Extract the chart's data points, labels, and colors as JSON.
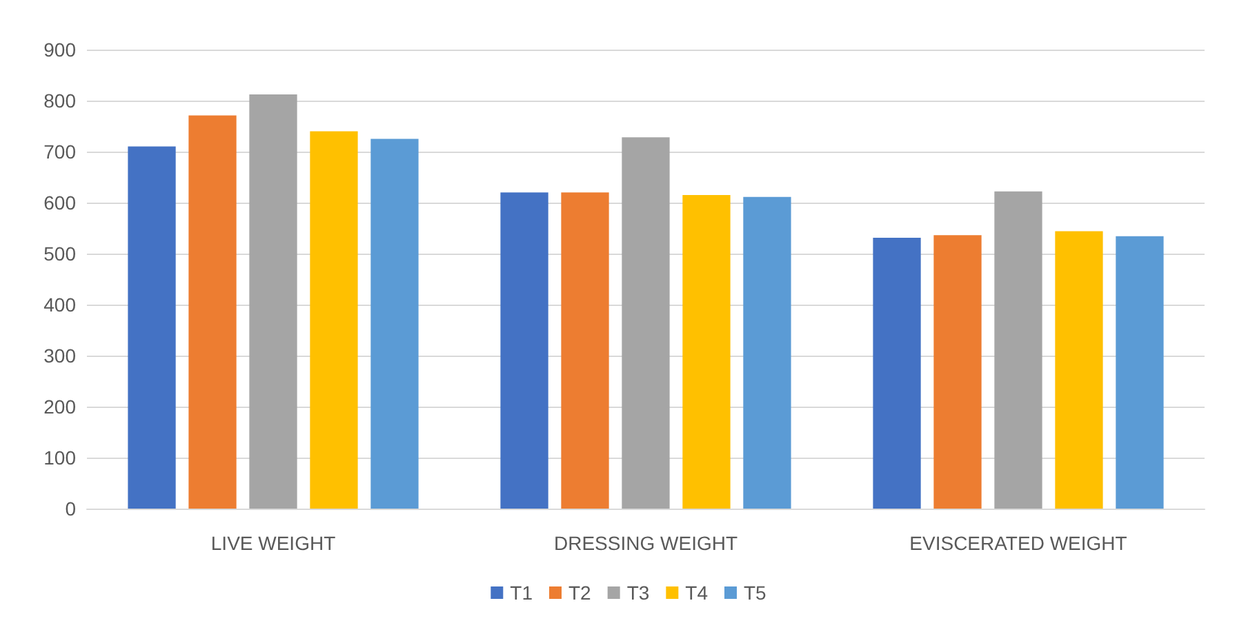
{
  "chart_data": {
    "type": "bar",
    "categories": [
      "LIVE WEIGHT",
      "DRESSING WEIGHT",
      "EVISCERATED WEIGHT"
    ],
    "series": [
      {
        "name": "T1",
        "color": "#4472c4",
        "values": [
          710,
          620,
          531
        ]
      },
      {
        "name": "T2",
        "color": "#ed7d31",
        "values": [
          771,
          620,
          536
        ]
      },
      {
        "name": "T3",
        "color": "#a5a5a5",
        "values": [
          812,
          728,
          622
        ]
      },
      {
        "name": "T4",
        "color": "#ffc000",
        "values": [
          740,
          615,
          544
        ]
      },
      {
        "name": "T5",
        "color": "#5b9bd5",
        "values": [
          725,
          611,
          534
        ]
      }
    ],
    "ylim": [
      0,
      900
    ],
    "yticks": [
      0,
      100,
      200,
      300,
      400,
      500,
      600,
      700,
      800,
      900
    ],
    "grid": "y",
    "legend": "bottom"
  }
}
